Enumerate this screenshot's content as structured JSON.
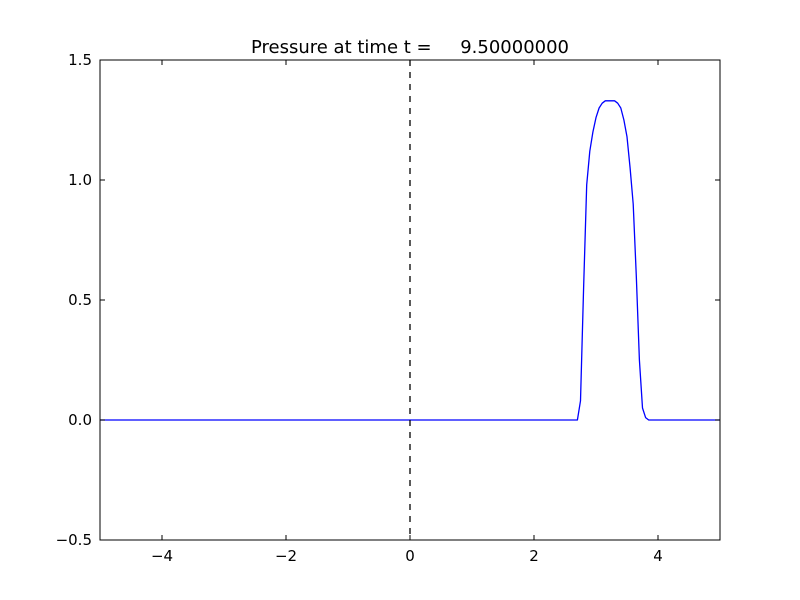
{
  "chart_data": {
    "type": "line",
    "title": "Pressure at time t =     9.50000000",
    "xlabel": "",
    "ylabel": "",
    "xlim": [
      -5,
      5
    ],
    "ylim": [
      -0.5,
      1.5
    ],
    "xticks": [
      -4,
      -2,
      0,
      2,
      4
    ],
    "xtick_labels": [
      "−4",
      "−2",
      "0",
      "2",
      "4"
    ],
    "yticks": [
      -0.5,
      0.0,
      0.5,
      1.0,
      1.5
    ],
    "ytick_labels": [
      "−0.5",
      "0.0",
      "0.5",
      "1.0",
      "1.5"
    ],
    "grid": false,
    "series": [
      {
        "color": "#0000ff",
        "x": [
          -5.0,
          2.6,
          2.7,
          2.75,
          2.8,
          2.85,
          2.9,
          2.95,
          3.0,
          3.05,
          3.1,
          3.15,
          3.2,
          3.25,
          3.3,
          3.35,
          3.4,
          3.45,
          3.5,
          3.55,
          3.6,
          3.65,
          3.7,
          3.75,
          3.8,
          3.85,
          4.0,
          5.0
        ],
        "y": [
          0.0,
          0.0,
          0.0,
          0.08,
          0.55,
          0.98,
          1.12,
          1.2,
          1.26,
          1.3,
          1.32,
          1.33,
          1.33,
          1.33,
          1.33,
          1.32,
          1.3,
          1.25,
          1.18,
          1.05,
          0.9,
          0.6,
          0.25,
          0.05,
          0.01,
          0.0,
          0.0,
          0.0
        ]
      }
    ],
    "vline": {
      "x": 0,
      "style": "dashed",
      "color": "#000000"
    }
  }
}
